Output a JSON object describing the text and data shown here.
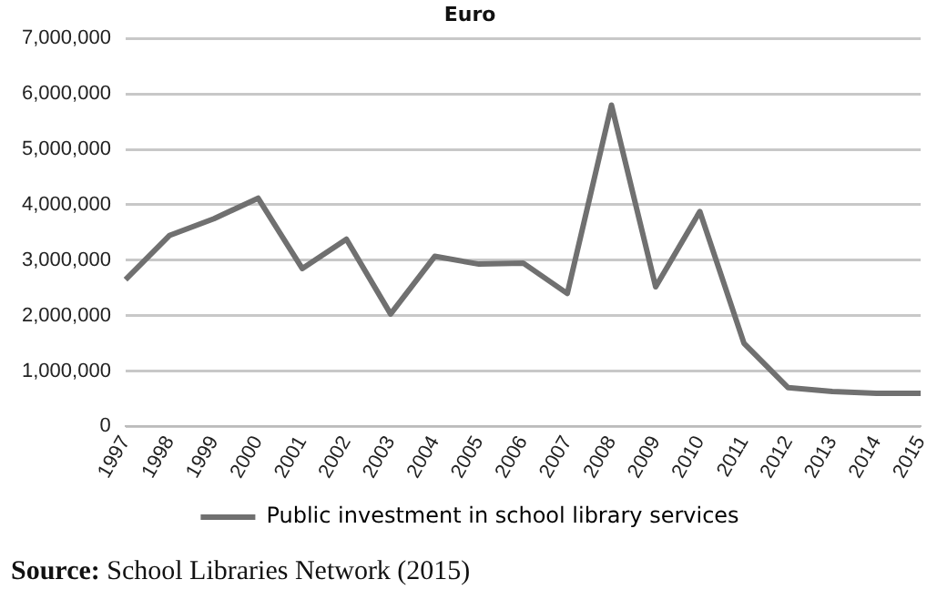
{
  "chart_data": {
    "type": "line",
    "title": "Euro",
    "categories": [
      "1997",
      "1998",
      "1999",
      "2000",
      "2001",
      "2002",
      "2003",
      "2004",
      "2005",
      "2006",
      "2007",
      "2008",
      "2009",
      "2010",
      "2011",
      "2012",
      "2013",
      "2014",
      "2015"
    ],
    "series": [
      {
        "name": "Public investment in school library services",
        "color": "#707070",
        "values": [
          2650000,
          3450000,
          3750000,
          4120000,
          2850000,
          3380000,
          2030000,
          3070000,
          2930000,
          2950000,
          2400000,
          5800000,
          2520000,
          3880000,
          1500000,
          700000,
          630000,
          600000,
          600000
        ]
      }
    ],
    "ylim": [
      0,
      7000000
    ],
    "yticks": [
      0,
      {
        "value": 1000000,
        "label": "1,000,000"
      },
      {
        "value": 2000000,
        "label": "2,000,000"
      },
      {
        "value": 3000000,
        "label": "3,000,000"
      },
      {
        "value": 4000000,
        "label": "4,000,000"
      },
      {
        "value": 5000000,
        "label": "5,000,000"
      },
      {
        "value": 6000000,
        "label": "6,000,000"
      },
      {
        "value": 7000000,
        "label": "7,000,000"
      }
    ],
    "grid": "y",
    "legend": "bottom",
    "marker": "none",
    "annotations": [
      "Source: School Libraries Network (2015)"
    ]
  }
}
